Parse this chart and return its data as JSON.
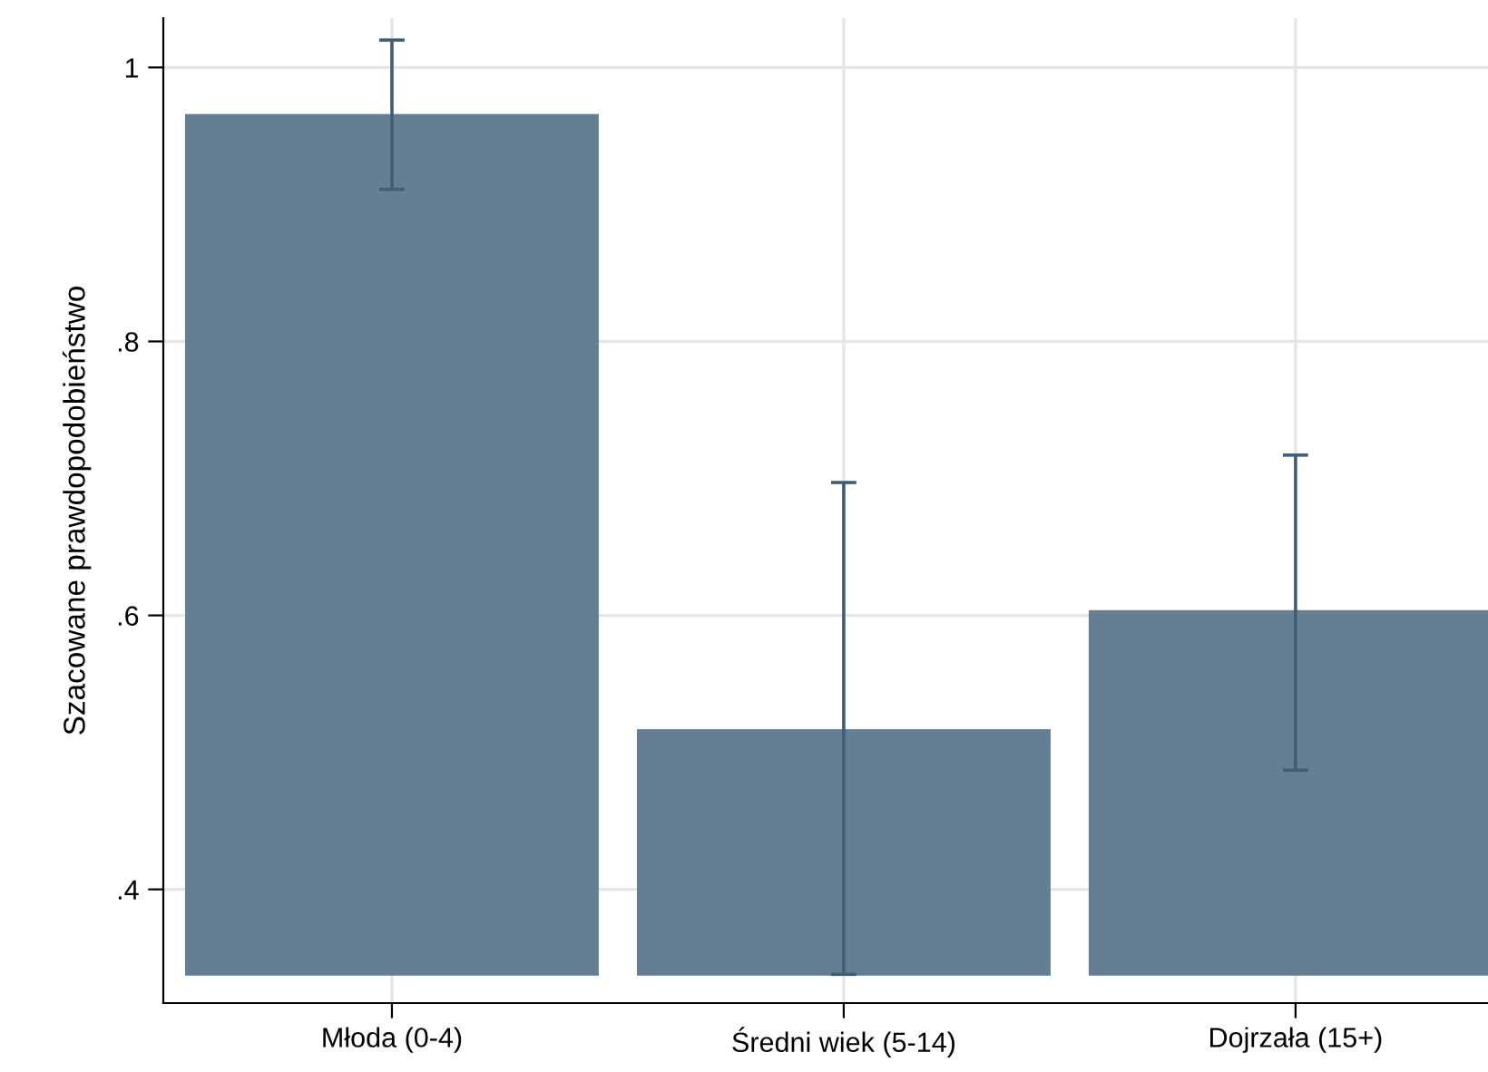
{
  "chart_data": {
    "type": "bar",
    "ylabel": "Szacowane prawdopodobieństwo",
    "categories": [
      "Młoda (0-4)",
      "Średni wiek (5-14)",
      "Dojrzała (15+)"
    ],
    "base": [
      0.338,
      0.338,
      0.338
    ],
    "values": [
      0.627,
      0.178,
      0.265
    ],
    "errors": [
      [
        0.911,
        1.02
      ],
      [
        0.338,
        0.697
      ],
      [
        0.487,
        0.717
      ]
    ],
    "color": "#647f93",
    "ylim": [
      0.317,
      1.036
    ],
    "yticks": [
      {
        "value": 0.4,
        "label": ".4"
      },
      {
        "value": 0.6,
        "label": ".6"
      },
      {
        "value": 0.8,
        "label": ".8"
      },
      1
    ],
    "grid": true
  }
}
